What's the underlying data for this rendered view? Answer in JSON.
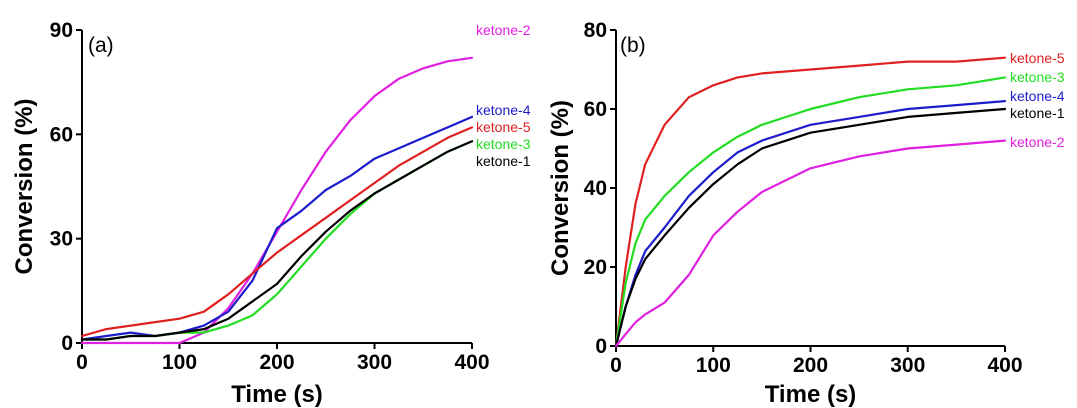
{
  "chart_data": [
    {
      "type": "line",
      "panel_label": "(a)",
      "xlabel": "Time (s)",
      "ylabel": "Conversion (%)",
      "xlim": [
        0,
        400
      ],
      "ylim": [
        0,
        90
      ],
      "xticks": [
        0,
        100,
        200,
        300,
        400
      ],
      "yticks": [
        0,
        30,
        60,
        90
      ],
      "x": [
        0,
        25,
        50,
        75,
        100,
        125,
        150,
        175,
        200,
        225,
        250,
        275,
        300,
        325,
        350,
        375,
        400
      ],
      "series": [
        {
          "name": "ketone-2",
          "color": "#e020e0",
          "values": [
            0,
            0,
            0,
            0,
            0,
            3,
            10,
            20,
            32,
            44,
            55,
            64,
            71,
            76,
            79,
            81,
            82
          ]
        },
        {
          "name": "ketone-4",
          "color": "#1c1ccc",
          "values": [
            1,
            2,
            3,
            2,
            3,
            5,
            9,
            18,
            33,
            38,
            44,
            48,
            53,
            56,
            59,
            62,
            65
          ]
        },
        {
          "name": "ketone-5",
          "color": "#e02020",
          "values": [
            2,
            4,
            5,
            6,
            7,
            9,
            14,
            20,
            26,
            31,
            36,
            41,
            46,
            51,
            55,
            59,
            62
          ]
        },
        {
          "name": "ketone-3",
          "color": "#22dd22",
          "values": [
            1,
            1,
            2,
            2,
            3,
            3,
            5,
            8,
            14,
            22,
            30,
            37,
            43,
            47,
            51,
            55,
            58
          ]
        },
        {
          "name": "ketone-1",
          "color": "#000000",
          "values": [
            1,
            1,
            2,
            2,
            3,
            4,
            7,
            12,
            17,
            25,
            32,
            38,
            43,
            47,
            51,
            55,
            58
          ]
        }
      ]
    },
    {
      "type": "line",
      "panel_label": "(b)",
      "xlabel": "Time (s)",
      "ylabel": "Conversion (%)",
      "xlim": [
        0,
        400
      ],
      "ylim": [
        0,
        80
      ],
      "xticks": [
        0,
        100,
        200,
        300,
        400
      ],
      "yticks": [
        0,
        20,
        40,
        60,
        80
      ],
      "x": [
        0,
        10,
        20,
        30,
        50,
        75,
        100,
        125,
        150,
        200,
        250,
        300,
        350,
        400
      ],
      "series": [
        {
          "name": "ketone-5",
          "color": "#e02020",
          "values": [
            0,
            20,
            36,
            46,
            56,
            63,
            66,
            68,
            69,
            70,
            71,
            72,
            72,
            73
          ]
        },
        {
          "name": "ketone-3",
          "color": "#22dd22",
          "values": [
            0,
            16,
            26,
            32,
            38,
            44,
            49,
            53,
            56,
            60,
            63,
            65,
            66,
            68
          ]
        },
        {
          "name": "ketone-4",
          "color": "#1c1ccc",
          "values": [
            0,
            10,
            18,
            24,
            30,
            38,
            44,
            49,
            52,
            56,
            58,
            60,
            61,
            62
          ]
        },
        {
          "name": "ketone-1",
          "color": "#000000",
          "values": [
            0,
            10,
            17,
            22,
            28,
            35,
            41,
            46,
            50,
            54,
            56,
            58,
            59,
            60
          ]
        },
        {
          "name": "ketone-2",
          "color": "#e020e0",
          "values": [
            0,
            3,
            6,
            8,
            11,
            18,
            28,
            34,
            39,
            45,
            48,
            50,
            51,
            52
          ]
        }
      ]
    }
  ]
}
